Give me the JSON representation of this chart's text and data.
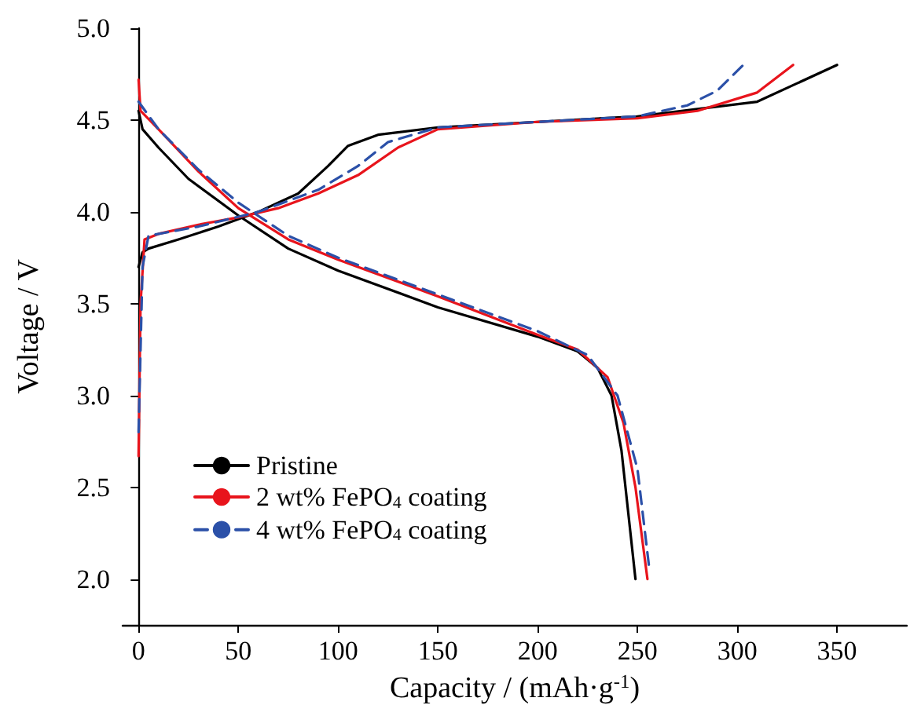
{
  "chart_data": {
    "type": "line",
    "xlabel": "Capacity / (mAh·g$^{-1}$)",
    "ylabel": "Voltage / V",
    "xlim": [
      -8,
      385
    ],
    "xticks": [
      0,
      50,
      100,
      150,
      200,
      250,
      300,
      350
    ],
    "ylim": [
      1.75,
      5.0
    ],
    "yticks": [
      {
        "value": 2,
        "label": "2.0"
      },
      2.5,
      {
        "value": 3,
        "label": "3.0"
      },
      3.5,
      {
        "value": 4,
        "label": "4.0"
      },
      4.5,
      {
        "value": 5,
        "label": "5.0"
      }
    ],
    "grid": false,
    "legend": "bottom left",
    "marker": "none",
    "series": [
      {
        "name": "Pristine",
        "color": "#000000",
        "line_style": "solid",
        "x": [
          0,
          2,
          5,
          20,
          40,
          60,
          80,
          95,
          105,
          120,
          150,
          200,
          250,
          280,
          310,
          330,
          350,
          null,
          0,
          2,
          10,
          25,
          50,
          75,
          100,
          150,
          200,
          220,
          230,
          237,
          242,
          246,
          249
        ],
        "values": [
          3.7,
          3.78,
          3.8,
          3.85,
          3.92,
          4.0,
          4.1,
          4.25,
          4.36,
          4.42,
          4.46,
          4.49,
          4.52,
          4.56,
          4.6,
          4.7,
          4.8,
          null,
          4.55,
          4.45,
          4.35,
          4.18,
          3.98,
          3.8,
          3.68,
          3.48,
          3.32,
          3.24,
          3.15,
          3.0,
          2.7,
          2.3,
          2.0
        ]
      },
      {
        "name": "2 wt% FePO$_{4}$ coating",
        "color": "#e8141c",
        "line_style": "solid",
        "x": [
          0,
          1,
          3,
          10,
          30,
          50,
          70,
          90,
          110,
          130,
          150,
          200,
          250,
          280,
          310,
          328,
          null,
          0,
          1,
          10,
          30,
          50,
          75,
          100,
          150,
          200,
          220,
          235,
          243,
          249,
          255
        ],
        "values": [
          2.67,
          3.5,
          3.85,
          3.88,
          3.93,
          3.97,
          4.02,
          4.1,
          4.2,
          4.35,
          4.45,
          4.49,
          4.51,
          4.55,
          4.65,
          4.8,
          null,
          4.72,
          4.55,
          4.45,
          4.22,
          4.02,
          3.85,
          3.74,
          3.54,
          3.33,
          3.25,
          3.1,
          2.85,
          2.5,
          2.0
        ]
      },
      {
        "name": "4 wt% FePO$_{4}$ coating",
        "color": "#2b50a8",
        "line_style": "dashed",
        "x": [
          0,
          2,
          5,
          30,
          60,
          90,
          110,
          125,
          150,
          200,
          250,
          275,
          290,
          303,
          null,
          0,
          10,
          30,
          50,
          75,
          100,
          150,
          200,
          225,
          240,
          250,
          256
        ],
        "values": [
          2.8,
          3.7,
          3.87,
          3.92,
          4.0,
          4.12,
          4.25,
          4.38,
          4.46,
          4.49,
          4.52,
          4.58,
          4.66,
          4.8,
          null,
          4.6,
          4.45,
          4.23,
          4.05,
          3.87,
          3.75,
          3.55,
          3.35,
          3.22,
          3.0,
          2.6,
          2.05
        ]
      }
    ]
  }
}
